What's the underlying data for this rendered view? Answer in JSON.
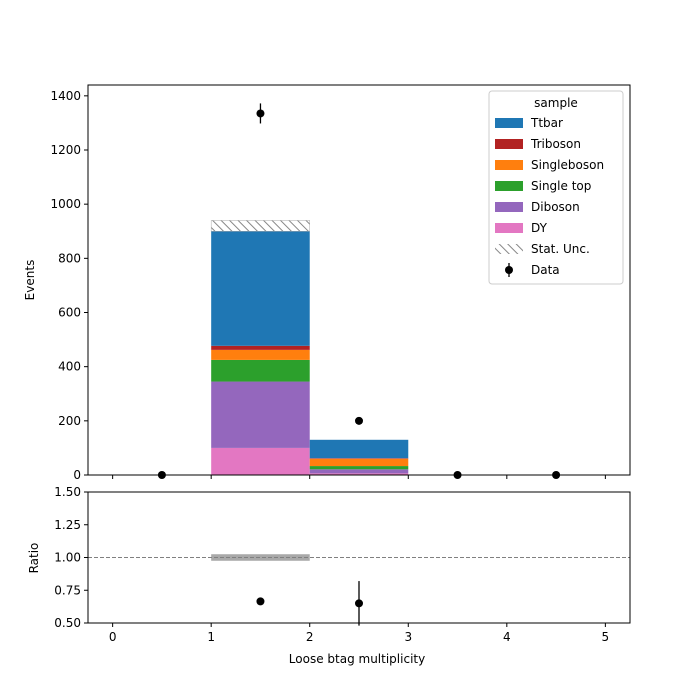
{
  "chart_data": {
    "type": "bar",
    "stacked": true,
    "xlabel": "Loose btag multiplicity",
    "ylabel_main": "Events",
    "ylabel_ratio": "Ratio",
    "xlim": [
      -0.25,
      5.25
    ],
    "ylim_main": [
      0,
      1440
    ],
    "ylim_ratio": [
      0.5,
      1.5
    ],
    "x_ticks": [
      0,
      1,
      2,
      3,
      4,
      5
    ],
    "y_ticks_main": [
      0,
      200,
      400,
      600,
      800,
      1000,
      1200,
      1400
    ],
    "y_ticks_ratio": [
      "0.50",
      "0.75",
      "1.00",
      "1.25",
      "1.50"
    ],
    "bin_edges": [
      1,
      2,
      3
    ],
    "legend_title": "sample",
    "legend_position": "top-right",
    "series": [
      {
        "name": "DY",
        "color": "#e377c2",
        "values": [
          100,
          6
        ]
      },
      {
        "name": "Diboson",
        "color": "#9467bd",
        "values": [
          245,
          15
        ]
      },
      {
        "name": "Single top",
        "color": "#2ca02c",
        "values": [
          80,
          12
        ]
      },
      {
        "name": "Singleboson",
        "color": "#ff7f0e",
        "values": [
          37,
          27
        ]
      },
      {
        "name": "Triboson",
        "color": "#b22222",
        "values": [
          15,
          2
        ]
      },
      {
        "name": "Ttbar",
        "color": "#1f77b4",
        "values": [
          423,
          68
        ]
      }
    ],
    "legend_order": [
      "Ttbar",
      "Triboson",
      "Singleboson",
      "Single top",
      "Diboson",
      "DY"
    ],
    "stat_unc": {
      "label": "Stat. Unc.",
      "bins": [
        {
          "x": 1.5,
          "low": 900,
          "high": 940
        }
      ]
    },
    "data": {
      "label": "Data",
      "x": [
        0.5,
        1.5,
        2.5,
        3.5,
        4.5
      ],
      "y": [
        0,
        1335,
        200,
        0,
        0
      ],
      "yerr": [
        0,
        37,
        14,
        0,
        0
      ]
    },
    "ratio": {
      "reference_line": 1.0,
      "unc_band": [
        {
          "x0": 1,
          "x1": 2,
          "low": 0.975,
          "high": 1.025
        }
      ],
      "points": [
        {
          "x": 1.5,
          "y": 0.665,
          "err": 0.0
        },
        {
          "x": 2.5,
          "y": 0.65,
          "err": 0.17
        }
      ]
    }
  }
}
